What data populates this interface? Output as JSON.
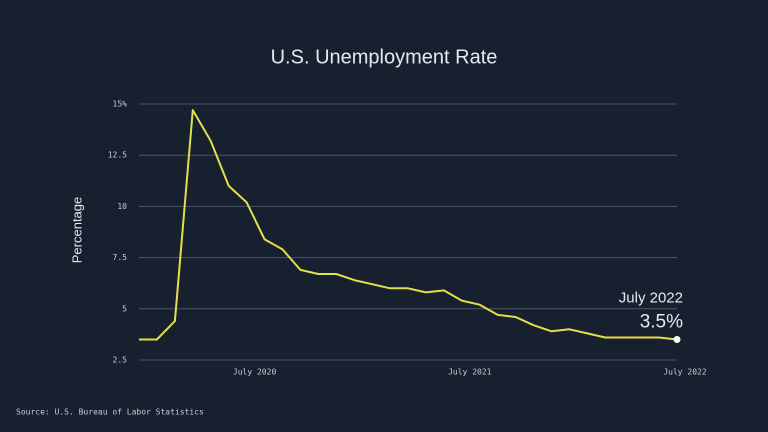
{
  "chart_data": {
    "type": "line",
    "title": "U.S. Unemployment Rate",
    "y_label": "Percentage",
    "source": "Source: U.S. Bureau of Labor Statistics",
    "categories": [
      null,
      null,
      null,
      null,
      null,
      null,
      "July 2020",
      null,
      null,
      null,
      null,
      null,
      null,
      null,
      null,
      null,
      null,
      null,
      "July 2021",
      null,
      null,
      null,
      null,
      null,
      null,
      null,
      null,
      null,
      null,
      null,
      "July 2022"
    ],
    "values": [
      3.5,
      3.5,
      4.4,
      14.7,
      13.2,
      11.0,
      10.2,
      8.4,
      7.9,
      6.9,
      6.7,
      6.7,
      6.4,
      6.2,
      6.0,
      6.0,
      5.8,
      5.9,
      5.4,
      5.2,
      4.7,
      4.6,
      4.2,
      3.9,
      4.0,
      3.8,
      3.6,
      3.6,
      3.6,
      3.6,
      3.5
    ],
    "value_labels": [
      null,
      null,
      null,
      null,
      null,
      null,
      null,
      null,
      null,
      null,
      null,
      null,
      null,
      null,
      null,
      null,
      null,
      null,
      null,
      null,
      null,
      null,
      null,
      null,
      null,
      null,
      null,
      null,
      null,
      null,
      "3.5%"
    ],
    "annotation": "July 2022",
    "color": "#e3df4a",
    "ylim": [
      2.5,
      15
    ],
    "yticks": [
      2.5,
      5,
      7.5,
      10,
      12.5,
      {
        "value": 15,
        "label": "15%"
      }
    ],
    "grid": true
  }
}
